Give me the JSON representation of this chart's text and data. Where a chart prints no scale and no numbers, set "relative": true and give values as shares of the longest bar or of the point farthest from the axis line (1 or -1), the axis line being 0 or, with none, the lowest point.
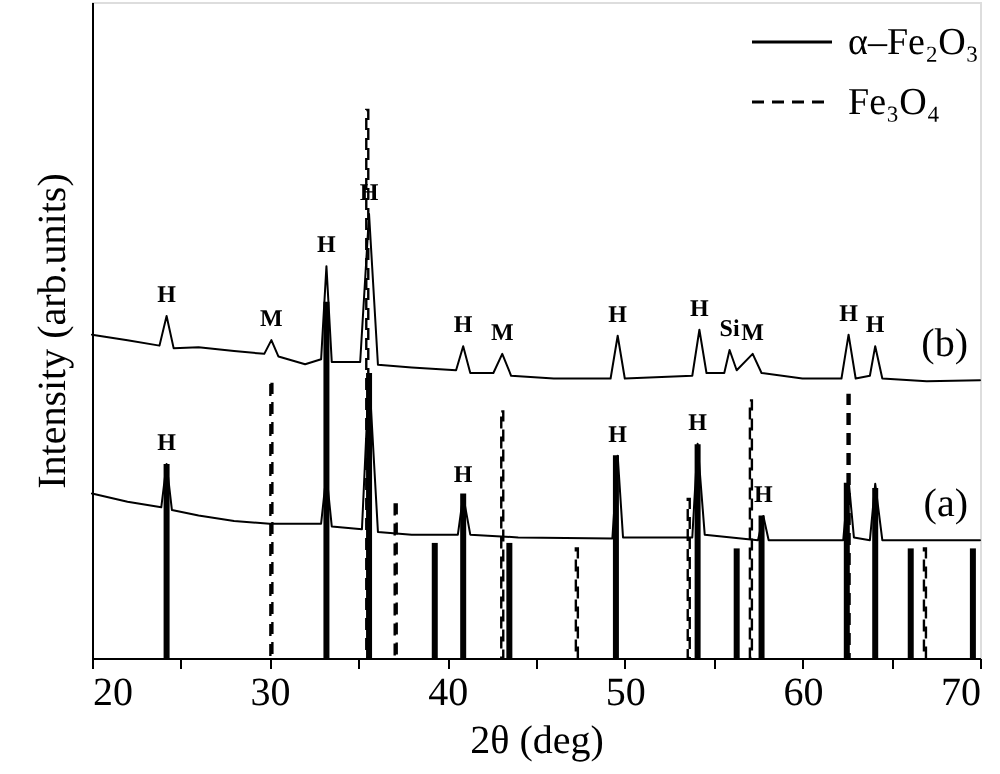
{
  "chart_data": {
    "type": "line",
    "relative": true,
    "xlabel": "2θ (deg)",
    "ylabel": "Intensity (arb.units)",
    "xlim": [
      20,
      70
    ],
    "xticks": [
      20,
      {
        "value": 25,
        "label": null
      },
      30,
      {
        "value": 35,
        "label": null
      },
      40,
      {
        "value": 45,
        "label": null
      },
      50,
      {
        "value": 55,
        "label": null
      },
      60,
      {
        "value": 65,
        "label": null
      },
      70
    ],
    "grid": false,
    "legend": "top right",
    "tick_labels": "x",
    "series": [
      {
        "name": "α–Fe₂O₃",
        "type": "bar",
        "color": "#000000",
        "line_style": "solid",
        "x": [
          24.2,
          33.2,
          35.6,
          39.3,
          40.9,
          43.5,
          49.5,
          54.1,
          56.3,
          57.7,
          62.5,
          64.1,
          66.1,
          69.6
        ],
        "values": [
          0.354,
          0.65,
          0.52,
          0.21,
          0.3,
          0.21,
          0.37,
          0.39,
          0.2,
          0.26,
          0.32,
          0.31,
          0.2,
          0.2
        ]
      },
      {
        "name": "Fe₃O₄",
        "type": "bar",
        "color": "#000000",
        "line_style": "dashed",
        "x": [
          30.1,
          35.5,
          37.1,
          43.1,
          47.3,
          53.6,
          57.1,
          62.6,
          66.9
        ],
        "values": [
          0.5,
          1.0,
          0.28,
          0.45,
          0.2,
          0.29,
          0.47,
          0.48,
          0.2
        ]
      },
      {
        "name": "(a)",
        "color": "#000000",
        "x": [
          20,
          22,
          23.9,
          24.2,
          24.5,
          26,
          28,
          30,
          32.9,
          33.2,
          33.5,
          35.2,
          35.6,
          36.1,
          38,
          40.6,
          40.9,
          41.3,
          44,
          49.3,
          49.6,
          49.9,
          53.8,
          54.1,
          54.5,
          57.5,
          57.8,
          58.1,
          62.3,
          62.6,
          62.9,
          63.8,
          64.1,
          64.5,
          67,
          70
        ],
        "values": [
          0.3,
          0.285,
          0.275,
          0.354,
          0.27,
          0.26,
          0.25,
          0.245,
          0.245,
          0.336,
          0.24,
          0.235,
          0.518,
          0.23,
          0.225,
          0.225,
          0.296,
          0.225,
          0.22,
          0.218,
          0.369,
          0.22,
          0.22,
          0.391,
          0.225,
          0.215,
          0.259,
          0.215,
          0.215,
          0.325,
          0.22,
          0.215,
          0.318,
          0.215,
          0.215,
          0.215
        ]
      },
      {
        "name": "(b)",
        "color": "#000000",
        "x": [
          20,
          22,
          23.8,
          24.2,
          24.6,
          26,
          28,
          29.7,
          30.1,
          30.5,
          32,
          32.9,
          33.2,
          33.5,
          35.1,
          35.6,
          36.1,
          38,
          40.5,
          40.9,
          41.3,
          42.6,
          43.1,
          43.6,
          46,
          49.2,
          49.6,
          50,
          53.8,
          54.2,
          54.6,
          55.6,
          55.9,
          56.3,
          57.2,
          57.7,
          60,
          62.2,
          62.6,
          63.0,
          63.8,
          64.1,
          64.5,
          67,
          70
        ],
        "values": [
          0.59,
          0.58,
          0.57,
          0.624,
          0.565,
          0.567,
          0.56,
          0.555,
          0.58,
          0.55,
          0.536,
          0.545,
          0.715,
          0.54,
          0.54,
          0.81,
          0.535,
          0.53,
          0.525,
          0.569,
          0.52,
          0.52,
          0.555,
          0.515,
          0.51,
          0.51,
          0.588,
          0.51,
          0.515,
          0.599,
          0.52,
          0.52,
          0.562,
          0.525,
          0.555,
          0.52,
          0.51,
          0.51,
          0.59,
          0.51,
          0.515,
          0.569,
          0.51,
          0.505,
          0.507
        ]
      }
    ],
    "annotations": [
      {
        "text": "H",
        "x": 24.2,
        "y": 0.624
      },
      {
        "text": "M",
        "x": 30.1,
        "y": 0.58
      },
      {
        "text": "H",
        "x": 33.2,
        "y": 0.715
      },
      {
        "text": "H",
        "x": 35.6,
        "y": 0.81
      },
      {
        "text": "H",
        "x": 40.9,
        "y": 0.569
      },
      {
        "text": "M",
        "x": 43.1,
        "y": 0.555
      },
      {
        "text": "H",
        "x": 49.6,
        "y": 0.588
      },
      {
        "text": "H",
        "x": 54.2,
        "y": 0.599
      },
      {
        "text": "Si",
        "x": 55.9,
        "y": 0.562
      },
      {
        "text": "M",
        "x": 57.2,
        "y": 0.555
      },
      {
        "text": "H",
        "x": 62.6,
        "y": 0.59
      },
      {
        "text": "H",
        "x": 64.1,
        "y": 0.569
      },
      {
        "text": "H",
        "x": 24.2,
        "y": 0.354
      },
      {
        "text": "H",
        "x": 40.9,
        "y": 0.296
      },
      {
        "text": "H",
        "x": 49.6,
        "y": 0.369
      },
      {
        "text": "H",
        "x": 54.1,
        "y": 0.391
      },
      {
        "text": "H",
        "x": 57.8,
        "y": 0.259
      }
    ]
  }
}
